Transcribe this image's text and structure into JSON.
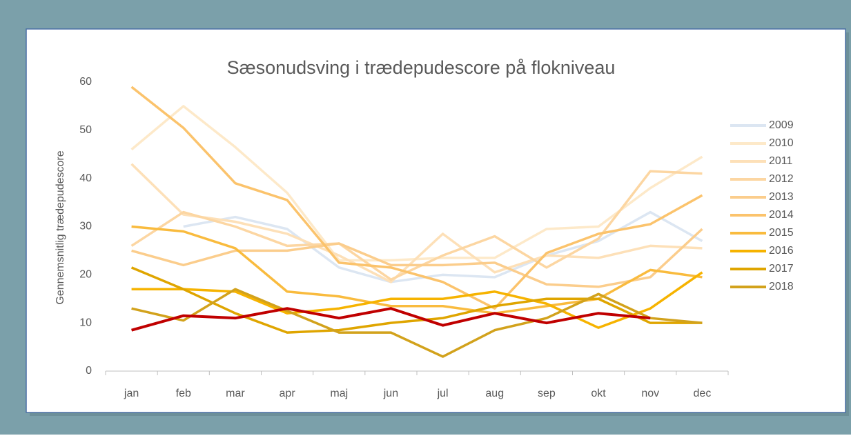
{
  "chart_data": {
    "type": "line",
    "title": "Sæsonudsving i trædepudescore på flokniveau",
    "y_label": "Gennemsnitlig trædepudescore",
    "categories": [
      "jan",
      "feb",
      "mar",
      "apr",
      "maj",
      "jun",
      "jul",
      "aug",
      "sep",
      "okt",
      "nov",
      "dec"
    ],
    "ylim": [
      0,
      60
    ],
    "yticks": [
      0,
      10,
      20,
      30,
      40,
      50,
      60
    ],
    "grid": false,
    "legend": "right",
    "series": [
      {
        "name": "2009",
        "color": "#dce6f2",
        "values": [
          null,
          30,
          32,
          29.5,
          21.5,
          18.5,
          20,
          19.5,
          24,
          27,
          33,
          27
        ]
      },
      {
        "name": "2010",
        "color": "#fde9c9",
        "values": [
          46,
          55,
          46.5,
          37,
          23,
          23,
          23.5,
          23.5,
          29.5,
          30,
          38,
          44.5
        ]
      },
      {
        "name": "2011",
        "color": "#fde0b8",
        "values": [
          43,
          32.5,
          31,
          28.5,
          24,
          18.5,
          28.5,
          20.5,
          24,
          23.5,
          26,
          25.5
        ]
      },
      {
        "name": "2012",
        "color": "#fcd6a2",
        "values": [
          26,
          33,
          30,
          26,
          26.5,
          19,
          24,
          28,
          21.5,
          27.5,
          41.5,
          41
        ]
      },
      {
        "name": "2013",
        "color": "#fbcd8c",
        "values": [
          25,
          22,
          25,
          25,
          26.5,
          22,
          22,
          22.5,
          18,
          17.5,
          19.5,
          29.5
        ]
      },
      {
        "name": "2014",
        "color": "#fbc36c",
        "values": [
          59,
          50.5,
          39,
          35.5,
          22.5,
          21.5,
          18.5,
          13,
          24.5,
          28.5,
          30.5,
          36.5
        ]
      },
      {
        "name": "2015",
        "color": "#f9bb3e",
        "values": [
          30,
          29,
          25.5,
          16.5,
          15.5,
          13.5,
          13.5,
          12,
          13.5,
          15,
          21,
          19.5
        ]
      },
      {
        "name": "2016",
        "color": "#f6b300",
        "values": [
          17,
          17,
          16.5,
          12,
          13,
          15,
          15,
          16.5,
          14,
          9,
          13,
          20.5
        ]
      },
      {
        "name": "2017",
        "color": "#dfa500",
        "values": [
          21.5,
          17,
          12,
          8,
          8.5,
          10,
          11,
          13.5,
          15,
          15,
          10,
          10
        ]
      },
      {
        "name": "2018",
        "color": "#d2a21c",
        "values": [
          13,
          10.5,
          17,
          12.5,
          8,
          8,
          3,
          8.5,
          11,
          16,
          11,
          10
        ]
      },
      {
        "color": "#c00000",
        "values": [
          8.5,
          11.5,
          11,
          13,
          11,
          13,
          9.5,
          12,
          10,
          12,
          11,
          null
        ]
      }
    ]
  }
}
